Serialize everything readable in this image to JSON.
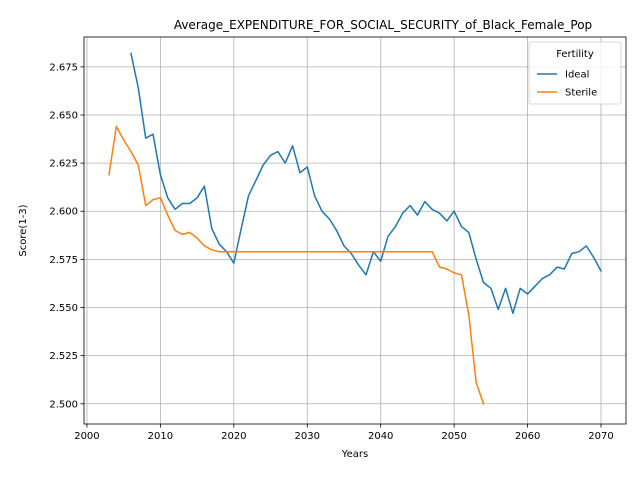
{
  "chart_data": {
    "type": "line",
    "title": "Average_EXPENDITURE_FOR_SOCIAL_SECURITY_of_Black_Female_Pop",
    "xlabel": "Years",
    "ylabel": "Score(1-3)",
    "xlim": [
      1999.6,
      2073.4
    ],
    "ylim": [
      2.4895,
      2.6905
    ],
    "xticks": [
      2000,
      2010,
      2020,
      2030,
      2040,
      2050,
      2060,
      2070
    ],
    "yticks": [
      2.5,
      2.525,
      2.55,
      2.575,
      2.6,
      2.625,
      2.65,
      2.675
    ],
    "grid": true,
    "legend": {
      "title": "Fertility",
      "placement": "top-right"
    },
    "series": [
      {
        "name": "Ideal",
        "color": "#1f77b4",
        "x": [
          2006,
          2007,
          2008,
          2009,
          2010,
          2011,
          2012,
          2013,
          2014,
          2015,
          2016,
          2017,
          2018,
          2019,
          2020,
          2021,
          2022,
          2023,
          2024,
          2025,
          2026,
          2027,
          2028,
          2029,
          2030,
          2031,
          2032,
          2033,
          2034,
          2035,
          2036,
          2037,
          2038,
          2039,
          2040,
          2041,
          2042,
          2043,
          2044,
          2045,
          2046,
          2047,
          2048,
          2049,
          2050,
          2051,
          2052,
          2053,
          2054,
          2055,
          2056,
          2057,
          2058,
          2059,
          2060,
          2061,
          2062,
          2063,
          2064,
          2065,
          2066,
          2067,
          2068,
          2069,
          2070
        ],
        "values": [
          2.682,
          2.664,
          2.638,
          2.64,
          2.619,
          2.607,
          2.601,
          2.604,
          2.604,
          2.607,
          2.613,
          2.591,
          2.583,
          2.579,
          2.573,
          2.591,
          2.608,
          2.616,
          2.624,
          2.629,
          2.631,
          2.625,
          2.634,
          2.62,
          2.623,
          2.608,
          2.6,
          2.596,
          2.59,
          2.582,
          2.578,
          2.572,
          2.567,
          2.579,
          2.574,
          2.587,
          2.592,
          2.599,
          2.603,
          2.598,
          2.605,
          2.601,
          2.599,
          2.595,
          2.6,
          2.592,
          2.589,
          2.575,
          2.563,
          2.56,
          2.549,
          2.56,
          2.547,
          2.56,
          2.557,
          2.561,
          2.565,
          2.567,
          2.571,
          2.57,
          2.578,
          2.579,
          2.582,
          2.576,
          2.569
        ]
      },
      {
        "name": "Sterile",
        "color": "#ff7f0e",
        "x": [
          2003,
          2004,
          2005,
          2006,
          2007,
          2008,
          2009,
          2010,
          2011,
          2012,
          2013,
          2014,
          2015,
          2016,
          2017,
          2018,
          2019,
          2020,
          2021,
          2022,
          2023,
          2024,
          2025,
          2026,
          2027,
          2028,
          2029,
          2030,
          2031,
          2032,
          2033,
          2034,
          2035,
          2036,
          2037,
          2038,
          2039,
          2040,
          2041,
          2042,
          2043,
          2044,
          2045,
          2046,
          2047,
          2048,
          2049,
          2050,
          2051,
          2052,
          2053,
          2054
        ],
        "values": [
          2.619,
          2.644,
          2.637,
          2.631,
          2.624,
          2.603,
          2.606,
          2.607,
          2.598,
          2.59,
          2.588,
          2.589,
          2.586,
          2.582,
          2.58,
          2.579,
          2.579,
          2.579,
          2.579,
          2.579,
          2.579,
          2.579,
          2.579,
          2.579,
          2.579,
          2.579,
          2.579,
          2.579,
          2.579,
          2.579,
          2.579,
          2.579,
          2.579,
          2.579,
          2.579,
          2.579,
          2.579,
          2.579,
          2.579,
          2.579,
          2.579,
          2.579,
          2.579,
          2.579,
          2.579,
          2.571,
          2.57,
          2.568,
          2.567,
          2.546,
          2.511,
          2.5
        ]
      }
    ]
  }
}
